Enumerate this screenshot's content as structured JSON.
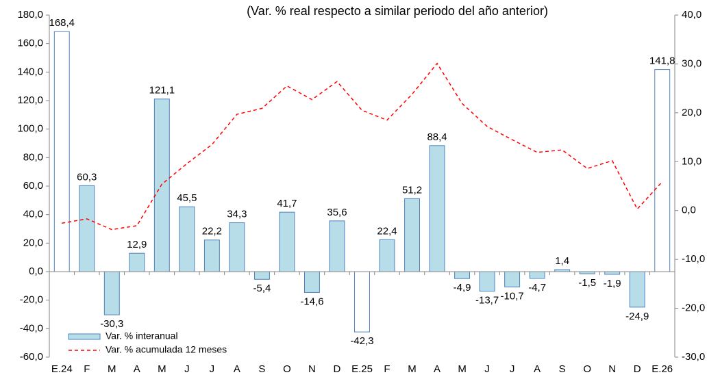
{
  "chart_data": {
    "type": "bar_line",
    "title": "(Var. % real respecto a similar periodo del año anterior)",
    "categories": [
      "E.24",
      "F",
      "M",
      "A",
      "M",
      "J",
      "J",
      "A",
      "S",
      "O",
      "N",
      "D",
      "E.25",
      "F",
      "M",
      "A",
      "M",
      "J",
      "J",
      "A",
      "S",
      "O",
      "N",
      "D",
      "E.26"
    ],
    "series": [
      {
        "name": "Var. % interanual",
        "type": "bar",
        "color": "#b7dde8",
        "edgecolor": "#4f81bd",
        "colors": [
          "#ffffff",
          "#b7dde8",
          "#b7dde8",
          "#b7dde8",
          "#b7dde8",
          "#b7dde8",
          "#b7dde8",
          "#b7dde8",
          "#b7dde8",
          "#b7dde8",
          "#b7dde8",
          "#b7dde8",
          "#ffffff",
          "#b7dde8",
          "#b7dde8",
          "#b7dde8",
          "#b7dde8",
          "#b7dde8",
          "#b7dde8",
          "#b7dde8",
          "#b7dde8",
          "#b7dde8",
          "#b7dde8",
          "#b7dde8",
          "#ffffff"
        ],
        "values": [
          168.4,
          60.3,
          -30.3,
          12.9,
          121.1,
          45.5,
          22.2,
          34.3,
          -5.4,
          41.7,
          -14.6,
          35.6,
          -42.3,
          22.4,
          51.2,
          88.4,
          -4.9,
          -13.7,
          -10.7,
          -4.7,
          1.4,
          -1.5,
          -1.9,
          -24.9,
          141.8
        ],
        "value_labels": [
          "168,4",
          "60,3",
          "-30,3",
          "12,9",
          "121,1",
          "45,5",
          "22,2",
          "34,3",
          "-5,4",
          "41,7",
          "-14,6",
          "35,6",
          "-42,3",
          "22,4",
          "51,2",
          "88,4",
          "-4,9",
          "-13,7",
          "-10,7",
          "-4,7",
          "1,4",
          "-1,5",
          "-1,9",
          "-24,9",
          "141,8"
        ]
      },
      {
        "name": "Var. % acumulada 12 meses",
        "type": "line",
        "axis": "y2",
        "color": "#ff0000",
        "linestyle": "dashed",
        "values": [
          -2.6,
          -1.7,
          -3.9,
          -3.1,
          5.4,
          9.6,
          13.5,
          19.7,
          20.9,
          25.5,
          22.7,
          26.4,
          20.5,
          18.5,
          23.8,
          30.1,
          21.9,
          17.2,
          14.5,
          11.9,
          12.4,
          8.6,
          10.2,
          0.3,
          5.9
        ]
      }
    ],
    "ylim": [
      -60,
      180
    ],
    "yticks": [
      {
        "value": -60,
        "label": "-60,0"
      },
      {
        "value": -40,
        "label": "-40,0"
      },
      {
        "value": -20,
        "label": "-20,0"
      },
      {
        "value": 0,
        "label": "0,0"
      },
      {
        "value": 20,
        "label": "20,0"
      },
      {
        "value": 40,
        "label": "40,0"
      },
      {
        "value": 60,
        "label": "60,0"
      },
      {
        "value": 80,
        "label": "80,0"
      },
      {
        "value": 100,
        "label": "100,0"
      },
      {
        "value": 120,
        "label": "120,0"
      },
      {
        "value": 140,
        "label": "140,0"
      },
      {
        "value": 160,
        "label": "160,0"
      },
      {
        "value": 180,
        "label": "180,0"
      }
    ],
    "y2lim": [
      -30,
      40
    ],
    "y2ticks": [
      {
        "value": -30,
        "label": "-30,0"
      },
      {
        "value": -20,
        "label": "-20,0"
      },
      {
        "value": -10,
        "label": "-10,0"
      },
      {
        "value": 0,
        "label": "0,0"
      },
      {
        "value": 10,
        "label": "10,0"
      },
      {
        "value": 20,
        "label": "20,0"
      },
      {
        "value": 30,
        "label": "30,0"
      },
      {
        "value": 40,
        "label": "40,0"
      }
    ],
    "grid": false,
    "legend": "lower left"
  }
}
